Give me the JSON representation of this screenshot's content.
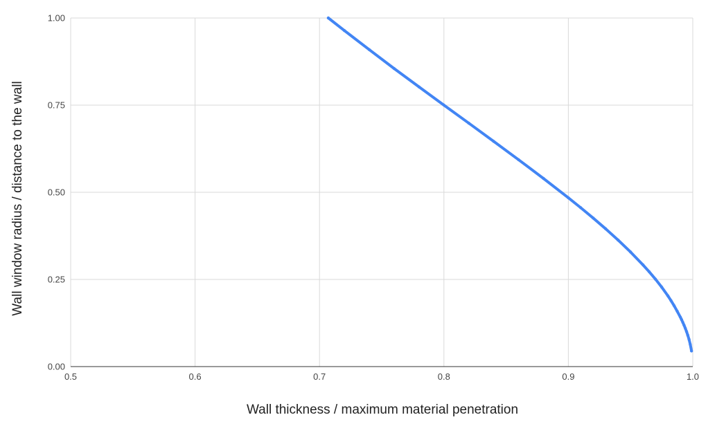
{
  "chart_data": {
    "type": "line",
    "title": "",
    "xlabel": "Wall thickness / maximum material penetration",
    "ylabel": "Wall window radius / distance to the wall",
    "xlim": [
      0.5,
      1.0
    ],
    "ylim": [
      0.0,
      1.0
    ],
    "grid": true,
    "x_ticks": [
      "0.5",
      "0.6",
      "0.7",
      "0.8",
      "0.9",
      "1.0"
    ],
    "y_ticks": [
      "0.00",
      "0.25",
      "0.50",
      "0.75",
      "1.00"
    ],
    "colors": {
      "series": "#4285f4",
      "grid": "#d9d9d9",
      "axis": "#333333"
    },
    "series": [
      {
        "points": [
          [
            0.7071,
            1.0
          ],
          [
            0.72,
            0.9639
          ],
          [
            0.74,
            0.9091
          ],
          [
            0.76,
            0.8549
          ],
          [
            0.78,
            0.8023
          ],
          [
            0.8,
            0.75
          ],
          [
            0.82,
            0.6983
          ],
          [
            0.84,
            0.646
          ],
          [
            0.86,
            0.5934
          ],
          [
            0.88,
            0.5397
          ],
          [
            0.9,
            0.4843
          ],
          [
            0.91,
            0.4556
          ],
          [
            0.92,
            0.426
          ],
          [
            0.93,
            0.3952
          ],
          [
            0.94,
            0.3629
          ],
          [
            0.95,
            0.3287
          ],
          [
            0.96,
            0.2917
          ],
          [
            0.965,
            0.2719
          ],
          [
            0.97,
            0.2509
          ],
          [
            0.975,
            0.2281
          ],
          [
            0.98,
            0.2031
          ],
          [
            0.9825,
            0.1894
          ],
          [
            0.985,
            0.1747
          ],
          [
            0.9875,
            0.1588
          ],
          [
            0.99,
            0.1421
          ],
          [
            0.991,
            0.1347
          ],
          [
            0.992,
            0.1269
          ],
          [
            0.993,
            0.1187
          ],
          [
            0.994,
            0.11
          ],
          [
            0.995,
            0.1005
          ],
          [
            0.996,
            0.0899
          ],
          [
            0.997,
            0.0779
          ],
          [
            0.998,
            0.0636
          ],
          [
            0.999,
            0.0449
          ]
        ]
      }
    ]
  }
}
